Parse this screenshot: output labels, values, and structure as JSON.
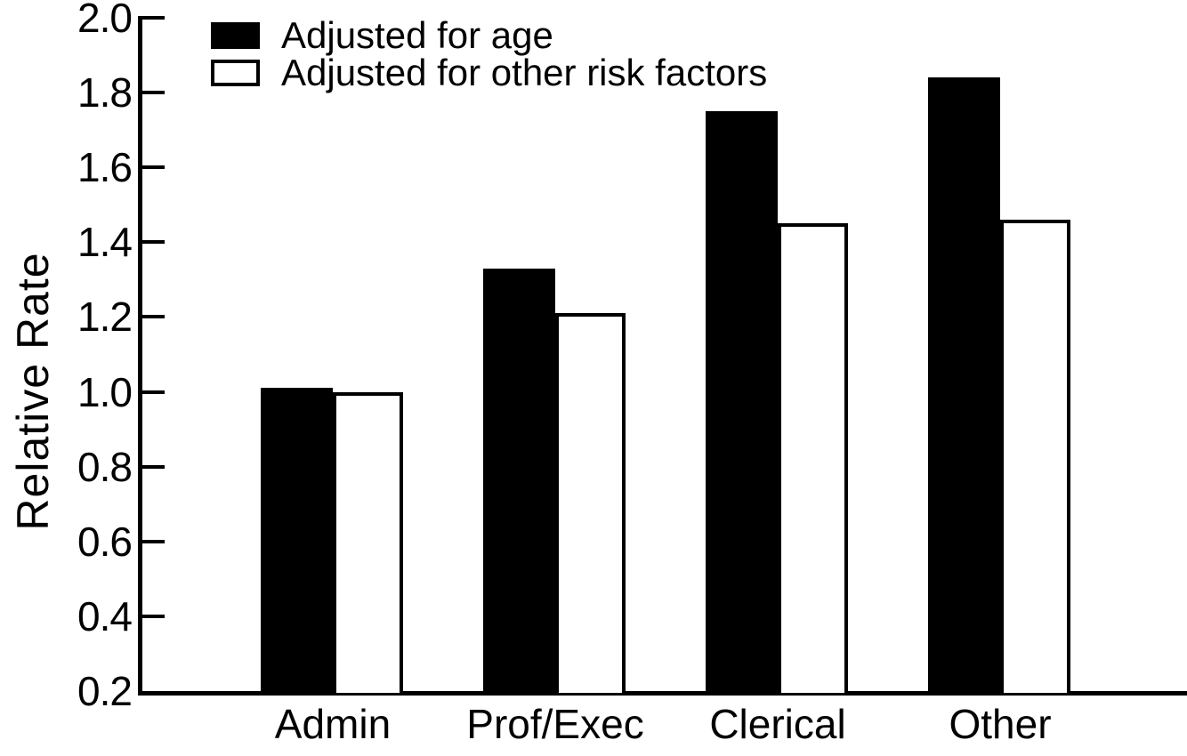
{
  "chart_data": {
    "type": "bar",
    "title": "",
    "xlabel": "",
    "ylabel": "Relative Rate",
    "categories": [
      "Admin",
      "Prof/Exec",
      "Clerical",
      "Other"
    ],
    "series": [
      {
        "name": "Adjusted for age",
        "style": "filled",
        "color": "#000000",
        "values": [
          1.01,
          1.33,
          1.75,
          1.84
        ]
      },
      {
        "name": "Adjusted for other risk factors",
        "style": "outlined",
        "color": "#ffffff",
        "values": [
          1.0,
          1.21,
          1.45,
          1.46
        ]
      }
    ],
    "y_axis": {
      "min": 0.2,
      "max": 2.0,
      "tick_step": 0.2,
      "tick_labels": [
        "2.0",
        "1.8",
        "1.6",
        "1.4",
        "1.2",
        "1.0",
        "0.8",
        "0.6",
        "0.4",
        "0.2"
      ]
    },
    "x_axis": {
      "tick_labels": [
        "Admin",
        "Prof/Exec",
        "Clerical",
        "Other"
      ]
    },
    "legend": {
      "position": "top-left-inside"
    },
    "grid": false,
    "colors": {
      "foreground": "#000000",
      "background": "#ffffff"
    }
  }
}
